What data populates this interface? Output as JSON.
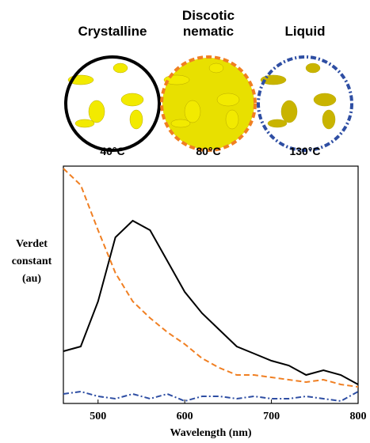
{
  "chart_data": {
    "type": "line",
    "xlabel": "Wavelength (nm)",
    "ylabel": "Verdet constant (au)",
    "x": [
      460,
      480,
      500,
      520,
      540,
      560,
      580,
      600,
      620,
      640,
      660,
      680,
      700,
      720,
      740,
      760,
      780,
      800
    ],
    "xlim": [
      460,
      800
    ],
    "xticks": [
      500,
      600,
      700,
      800
    ],
    "ylim": [
      0,
      100
    ],
    "series": [
      {
        "name": "Crystalline",
        "temperature": "40°C",
        "color": "#000000",
        "dash": "solid",
        "values": [
          22,
          24,
          43,
          70,
          77,
          73,
          60,
          47,
          38,
          31,
          24,
          21,
          18,
          16,
          12,
          14,
          12,
          8
        ]
      },
      {
        "name": "Discotic nematic",
        "temperature": "80°C",
        "color": "#f07f22",
        "dash": "dashed",
        "values": [
          99,
          92,
          73,
          55,
          43,
          36,
          30,
          25,
          19,
          15,
          12,
          12,
          11,
          10,
          9,
          10,
          8,
          7
        ]
      },
      {
        "name": "Liquid",
        "temperature": "130°C",
        "color": "#2e4ea3",
        "dash": "dashdot",
        "values": [
          4,
          5,
          3,
          2,
          4,
          2,
          4,
          1,
          3,
          3,
          2,
          3,
          2,
          2,
          3,
          2,
          1,
          5
        ]
      }
    ]
  }
}
